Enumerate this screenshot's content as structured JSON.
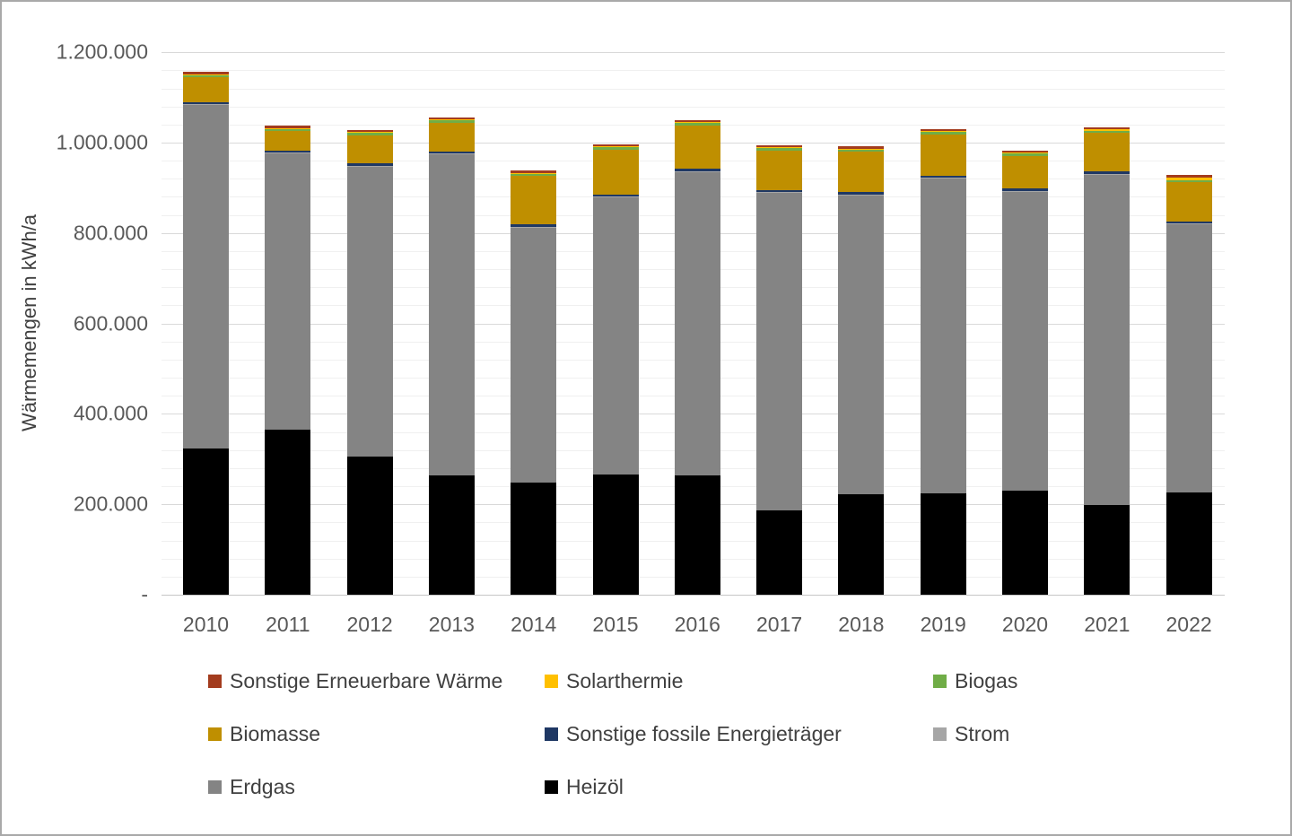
{
  "chart_data": {
    "type": "bar",
    "stacked": true,
    "title": "",
    "xlabel": "",
    "ylabel": "Wärmemengen in kWh/a",
    "unit": "kWh/a",
    "ylim": [
      0,
      1250000
    ],
    "ytick_major": 200000,
    "ytick_minor": 40000,
    "grid": "on",
    "legend_position": "bottom",
    "categories": [
      "2010",
      "2011",
      "2012",
      "2013",
      "2014",
      "2015",
      "2016",
      "2017",
      "2018",
      "2019",
      "2020",
      "2021",
      "2022"
    ],
    "yticks": [
      {
        "value": 1200000,
        "label": "1.200.000"
      },
      {
        "value": 1000000,
        "label": "1.000.000"
      },
      {
        "value": 800000,
        "label": "800.000"
      },
      {
        "value": 600000,
        "label": "600.000"
      },
      {
        "value": 400000,
        "label": "400.000"
      },
      {
        "value": 200000,
        "label": "200.000"
      },
      {
        "value": 0,
        "label": "-"
      }
    ],
    "series": [
      {
        "name": "Heizöl",
        "color": "#000000",
        "values": [
          324000,
          365000,
          306000,
          263000,
          249000,
          266000,
          263000,
          187000,
          222000,
          224000,
          231000,
          198000,
          227000
        ]
      },
      {
        "name": "Erdgas",
        "color": "#848484",
        "values": [
          759000,
          611000,
          641000,
          711000,
          563000,
          612000,
          672000,
          701000,
          661000,
          696000,
          660000,
          731000,
          592000
        ]
      },
      {
        "name": "Strom",
        "color": "#a6a6a6",
        "values": [
          2000,
          2000,
          2000,
          2000,
          2000,
          2000,
          2000,
          2000,
          2000,
          2000,
          2000,
          2000,
          2000
        ]
      },
      {
        "name": "Sonstige fossile Energieträger",
        "color": "#1f3864",
        "values": [
          5000,
          5000,
          5000,
          5000,
          5000,
          5000,
          5000,
          5000,
          5000,
          5000,
          5000,
          5000,
          5000
        ]
      },
      {
        "name": "Biomasse",
        "color": "#bf8f00",
        "values": [
          54000,
          42000,
          62000,
          63000,
          107000,
          100000,
          96000,
          88000,
          90000,
          91000,
          73000,
          85000,
          86000
        ]
      },
      {
        "name": "Biogas",
        "color": "#70ad47",
        "values": [
          5000,
          5000,
          5000,
          5000,
          5000,
          5000,
          5000,
          5000,
          5000,
          5000,
          5000,
          5000,
          5000
        ]
      },
      {
        "name": "Solarthermie",
        "color": "#ffc000",
        "values": [
          2000,
          2000,
          2000,
          2000,
          2000,
          2000,
          2000,
          2000,
          2000,
          2000,
          2000,
          3000,
          6000
        ]
      },
      {
        "name": "Sonstige Erneuerbare Wärme",
        "color": "#a33c1e",
        "values": [
          5000,
          5000,
          5000,
          5000,
          5000,
          5000,
          5000,
          5000,
          5000,
          5000,
          5000,
          5000,
          5000
        ]
      }
    ],
    "totals": [
      1156000,
      1037000,
      1028000,
      1056000,
      938000,
      997000,
      1050000,
      995000,
      992000,
      1030000,
      983000,
      1034000,
      928000
    ],
    "legend_entries": [
      {
        "label": "Sonstige Erneuerbare Wärme",
        "color": "#a33c1e"
      },
      {
        "label": "Solarthermie",
        "color": "#ffc000"
      },
      {
        "label": "Biogas",
        "color": "#70ad47"
      },
      {
        "label": "Biomasse",
        "color": "#bf8f00"
      },
      {
        "label": "Sonstige fossile Energieträger",
        "color": "#1f3864"
      },
      {
        "label": "Strom",
        "color": "#a6a6a6"
      },
      {
        "label": "Erdgas",
        "color": "#848484"
      },
      {
        "label": "Heizöl",
        "color": "#000000"
      }
    ]
  }
}
